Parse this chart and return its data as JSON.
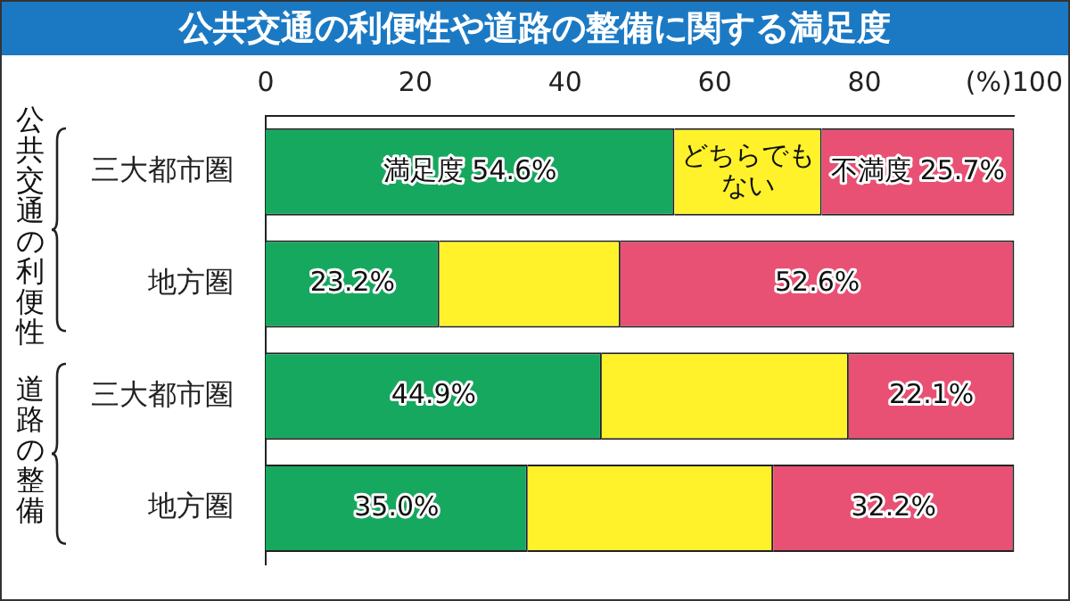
{
  "chart_data": {
    "type": "bar",
    "orientation": "horizontal",
    "stacked": true,
    "title": "公共交通の利便性や道路の整備に関する満足度",
    "categories": [
      "三大都市圏",
      "地方圏",
      "三大都市圏",
      "地方圏"
    ],
    "series": [
      {
        "color": "#17a85f",
        "values": [
          54.6,
          23.2,
          44.9,
          35.0
        ],
        "value_labels": [
          "満足度 54.6%",
          "23.2%",
          "44.9%",
          "35.0%"
        ]
      },
      {
        "color": "#fff22a",
        "values": [
          19.7,
          24.2,
          33.0,
          32.8
        ],
        "value_labels": [
          "どちらでもない",
          null,
          null,
          null
        ]
      },
      {
        "color": "#e85173",
        "values": [
          25.7,
          52.6,
          22.1,
          32.2
        ],
        "value_labels": [
          "不満度 25.7%",
          "52.6%",
          "22.1%",
          "32.2%"
        ]
      }
    ],
    "xlim": [
      0,
      100
    ],
    "xticks": [
      0,
      20,
      40,
      60,
      80,
      {
        "value": 100,
        "label": "(%)100"
      }
    ],
    "annotations": [
      "公共交通の利便性",
      "道路の整備"
    ],
    "grid": false,
    "legend": false
  }
}
